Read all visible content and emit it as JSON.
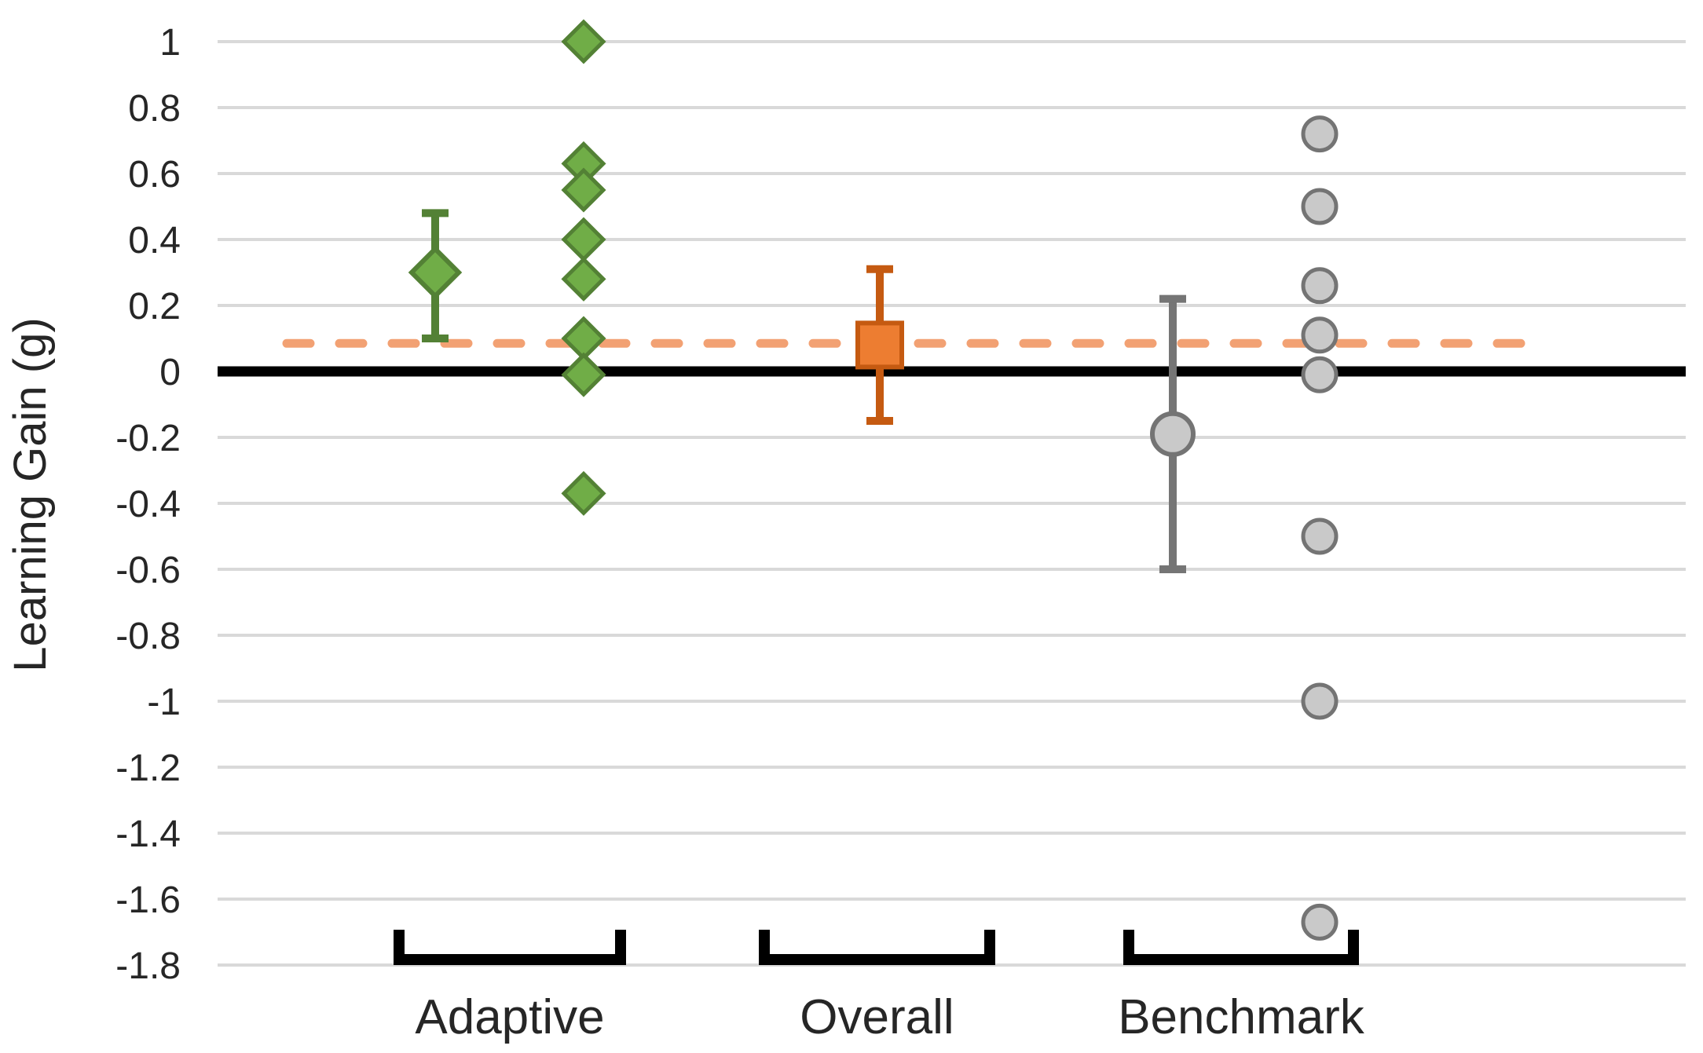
{
  "chart_data": {
    "type": "scatter",
    "title": "",
    "ylabel": "Learning Gain (g)",
    "xlabel": "",
    "ylim": [
      -1.8,
      1
    ],
    "grid": true,
    "y_ticks": [
      1,
      0.8,
      0.6,
      0.4,
      0.2,
      0,
      -0.2,
      -0.4,
      -0.6,
      -0.8,
      -1,
      -1.2,
      -1.4,
      -1.6,
      -1.8
    ],
    "y_tick_labels": [
      "1",
      "0.8",
      "0.6",
      "0.4",
      "0.2",
      "0",
      "-0.2",
      "-0.4",
      "-0.6",
      "-0.8",
      "-1",
      "-1.2",
      "-1.4",
      "-1.6",
      "-1.8"
    ],
    "zero_line": 0,
    "reference_line": {
      "value": 0.085,
      "style": "dashed",
      "color": "#F2A173",
      "meaning": "overall mean gain line"
    },
    "groups": [
      {
        "label": "Adaptive",
        "marker": "diamond",
        "fill": "#70AD47",
        "stroke": "#538135",
        "error_color": "#538135",
        "summary": {
          "mean": 0.3,
          "ci_low": 0.1,
          "ci_high": 0.48
        },
        "points": [
          1.0,
          0.63,
          0.55,
          0.4,
          0.28,
          0.1,
          -0.01,
          -0.37
        ]
      },
      {
        "label": "Overall",
        "marker": "square",
        "fill": "#ED7D31",
        "stroke": "#C55A11",
        "error_color": "#C55A11",
        "summary": {
          "mean": 0.08,
          "ci_low": -0.15,
          "ci_high": 0.31
        },
        "points": []
      },
      {
        "label": "Benchmark",
        "marker": "circle",
        "fill": "#C9C9C9",
        "stroke": "#747474",
        "error_color": "#757575",
        "summary": {
          "mean": -0.19,
          "ci_low": -0.6,
          "ci_high": 0.22
        },
        "points": [
          0.72,
          0.5,
          0.26,
          0.11,
          -0.01,
          -0.5,
          -1.0,
          -1.67
        ]
      }
    ],
    "colors": {
      "gridline": "#D9D9D9",
      "zero_line": "#000000",
      "bracket": "#000000",
      "text": "#262626"
    },
    "legend": "none"
  }
}
